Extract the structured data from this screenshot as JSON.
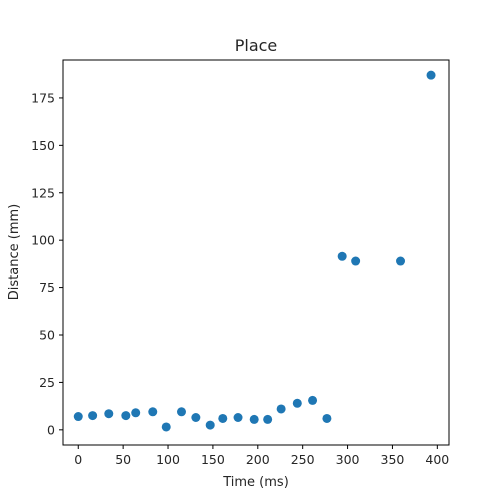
{
  "chart_data": {
    "type": "scatter",
    "title": "Place",
    "xlabel": "Time (ms)",
    "ylabel": "Distance (mm)",
    "xlim": [
      -17,
      413
    ],
    "ylim": [
      -8,
      195
    ],
    "xticks": [
      0,
      50,
      100,
      150,
      200,
      250,
      300,
      350,
      400
    ],
    "yticks": [
      0,
      25,
      50,
      75,
      100,
      125,
      150,
      175
    ],
    "grid": false,
    "color": "#1f77b4",
    "series": [
      {
        "x": [
          0,
          16,
          34,
          53,
          64,
          83,
          98,
          115,
          131,
          147,
          161,
          178,
          196,
          211,
          226,
          244,
          261,
          277,
          294,
          309,
          359,
          393
        ],
        "y": [
          7,
          7.5,
          8.5,
          7.5,
          9,
          9.5,
          1.5,
          9.5,
          6.5,
          2.5,
          6,
          6.5,
          5.5,
          5.5,
          11,
          14,
          15.5,
          6,
          91.5,
          89,
          89,
          187
        ]
      }
    ]
  }
}
